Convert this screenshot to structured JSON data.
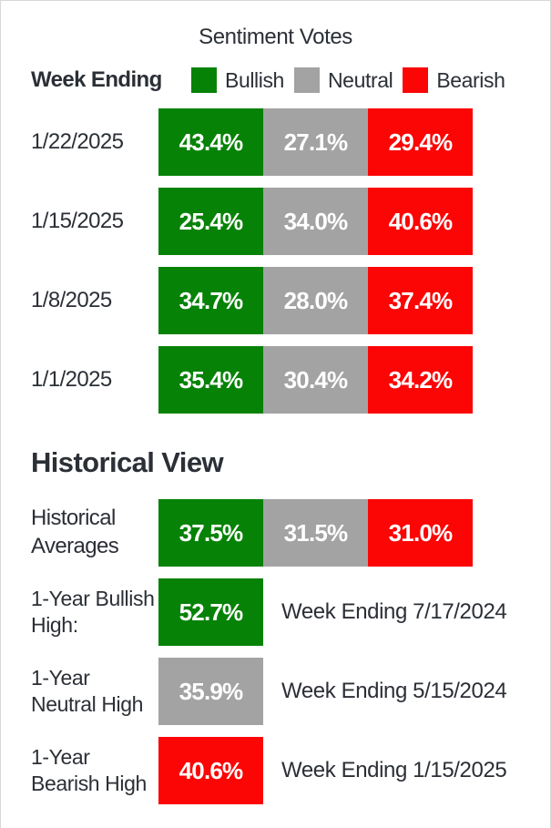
{
  "header": {
    "title": "Sentiment Votes",
    "week_ending_label": "Week Ending",
    "legend": [
      {
        "label": "Bullish",
        "color": "#068206"
      },
      {
        "label": "Neutral",
        "color": "#a3a3a3"
      },
      {
        "label": "Bearish",
        "color": "#fb0505"
      }
    ]
  },
  "weekly": [
    {
      "date": "1/22/2025",
      "bullish": "43.4%",
      "neutral": "27.1%",
      "bearish": "29.4%"
    },
    {
      "date": "1/15/2025",
      "bullish": "25.4%",
      "neutral": "34.0%",
      "bearish": "40.6%"
    },
    {
      "date": "1/8/2025",
      "bullish": "34.7%",
      "neutral": "28.0%",
      "bearish": "37.4%"
    },
    {
      "date": "1/1/2025",
      "bullish": "35.4%",
      "neutral": "30.4%",
      "bearish": "34.2%"
    }
  ],
  "historical": {
    "heading": "Historical View",
    "averages": {
      "label": "Historical Averages",
      "bullish": "37.5%",
      "neutral": "31.5%",
      "bearish": "31.0%"
    },
    "highs": [
      {
        "label": "1-Year Bullish High:",
        "value": "52.7%",
        "note": "Week Ending 7/17/2024"
      },
      {
        "label": "1-Year Neutral High",
        "value": "35.9%",
        "note": "Week Ending 5/15/2024"
      },
      {
        "label": "1-Year Bearish High",
        "value": "40.6%",
        "note": "Week Ending 1/15/2025"
      }
    ]
  },
  "colors": {
    "bullish": "#068206",
    "neutral": "#a3a3a3",
    "bearish": "#fb0505",
    "ink": "#2b2f36",
    "border": "#d8d8d8"
  },
  "chart_data": {
    "type": "bar",
    "subtype": "horizontal-stacked-equal-width-segments",
    "title": "Sentiment Votes",
    "xlabel": "Week Ending",
    "ylabel": "",
    "legend_position": "top",
    "grid": false,
    "categories": [
      "1/22/2025",
      "1/15/2025",
      "1/8/2025",
      "1/1/2025"
    ],
    "series": [
      {
        "name": "Bullish",
        "color": "#068206",
        "values": [
          43.4,
          25.4,
          34.7,
          35.4
        ]
      },
      {
        "name": "Neutral",
        "color": "#a3a3a3",
        "values": [
          27.1,
          34.0,
          28.0,
          30.4
        ]
      },
      {
        "name": "Bearish",
        "color": "#fb0505",
        "values": [
          29.4,
          40.6,
          37.4,
          34.2
        ]
      }
    ],
    "historical_view": {
      "averages": {
        "Bullish": 37.5,
        "Neutral": 31.5,
        "Bearish": 31.0
      },
      "one_year_highs": [
        {
          "name": "Bullish",
          "value": 52.7,
          "week_ending": "7/17/2024"
        },
        {
          "name": "Neutral",
          "value": 35.9,
          "week_ending": "5/15/2024"
        },
        {
          "name": "Bearish",
          "value": 40.6,
          "week_ending": "1/15/2025"
        }
      ]
    }
  }
}
